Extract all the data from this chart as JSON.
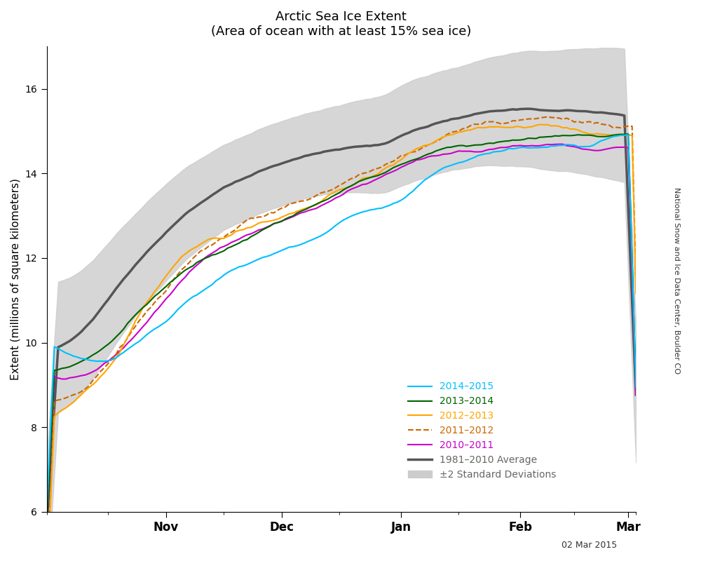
{
  "title": "Arctic Sea Ice Extent",
  "subtitle": "(Area of ocean with at least 15% sea ice)",
  "ylabel": "Extent (millions of square kilometers)",
  "date_label": "02 Mar 2015",
  "credit": "National Snow and Ice Data Center, Boulder CO",
  "ylim": [
    6,
    17
  ],
  "yticks": [
    6,
    8,
    10,
    12,
    14,
    16
  ],
  "month_labels": [
    "Nov",
    "Dec",
    "Jan",
    "Feb",
    "Mar"
  ],
  "colors": {
    "2014-2015": "#00BFFF",
    "2013-2014": "#006400",
    "2012-2013": "#FFA500",
    "2011-2012": "#CD6600",
    "2010-2011": "#CC00CC",
    "average": "#555555",
    "shading": "#CCCCCC"
  },
  "background": "#FFFFFF"
}
